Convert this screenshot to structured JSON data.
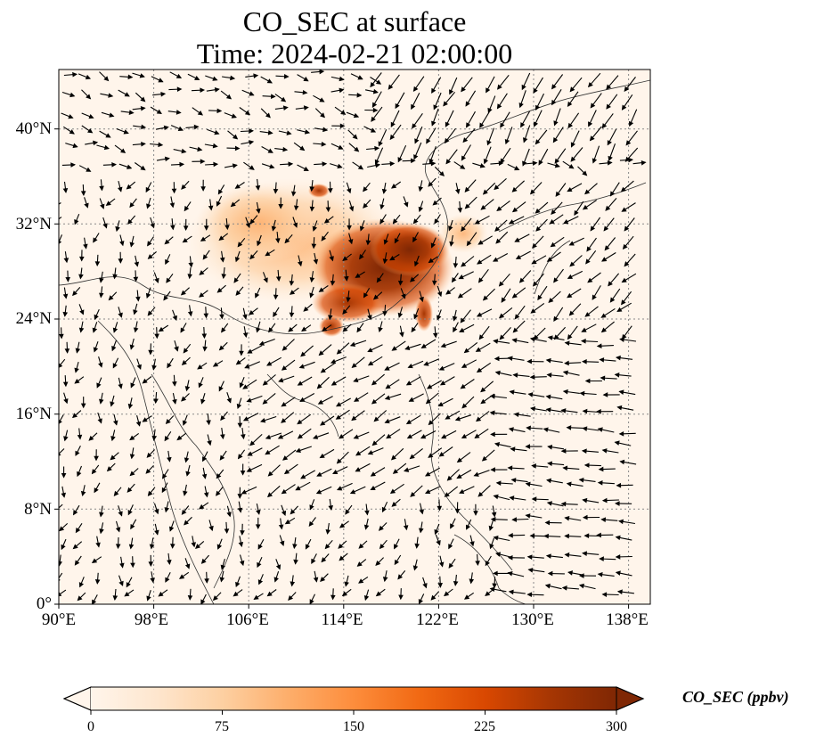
{
  "title_line1": "CO_SEC at surface",
  "title_line2": "Time: 2024-02-21 02:00:00",
  "lon_ticks": [
    "90°E",
    "98°E",
    "106°E",
    "114°E",
    "122°E",
    "130°E",
    "138°E"
  ],
  "lat_ticks": [
    "40°N",
    "32°N",
    "24°N",
    "16°N",
    "8°N",
    "0°"
  ],
  "colorbar": {
    "label": "CO_SEC (ppbv)",
    "ticks": [
      "0",
      "75",
      "150",
      "225",
      "300"
    ],
    "min": 0,
    "max": 300,
    "extend": "both",
    "colormap": [
      "#fff5eb",
      "#fee6ce",
      "#fdd0a2",
      "#fdae6b",
      "#fd8d3c",
      "#f16913",
      "#d94801",
      "#a63603",
      "#7f2704"
    ]
  },
  "map": {
    "lon_range": [
      90,
      140
    ],
    "lat_range": [
      0,
      45
    ],
    "gridlines": "dotted",
    "wind_vectors": true,
    "background_color": "#fff5eb",
    "land_outline_color": "#333333"
  }
}
